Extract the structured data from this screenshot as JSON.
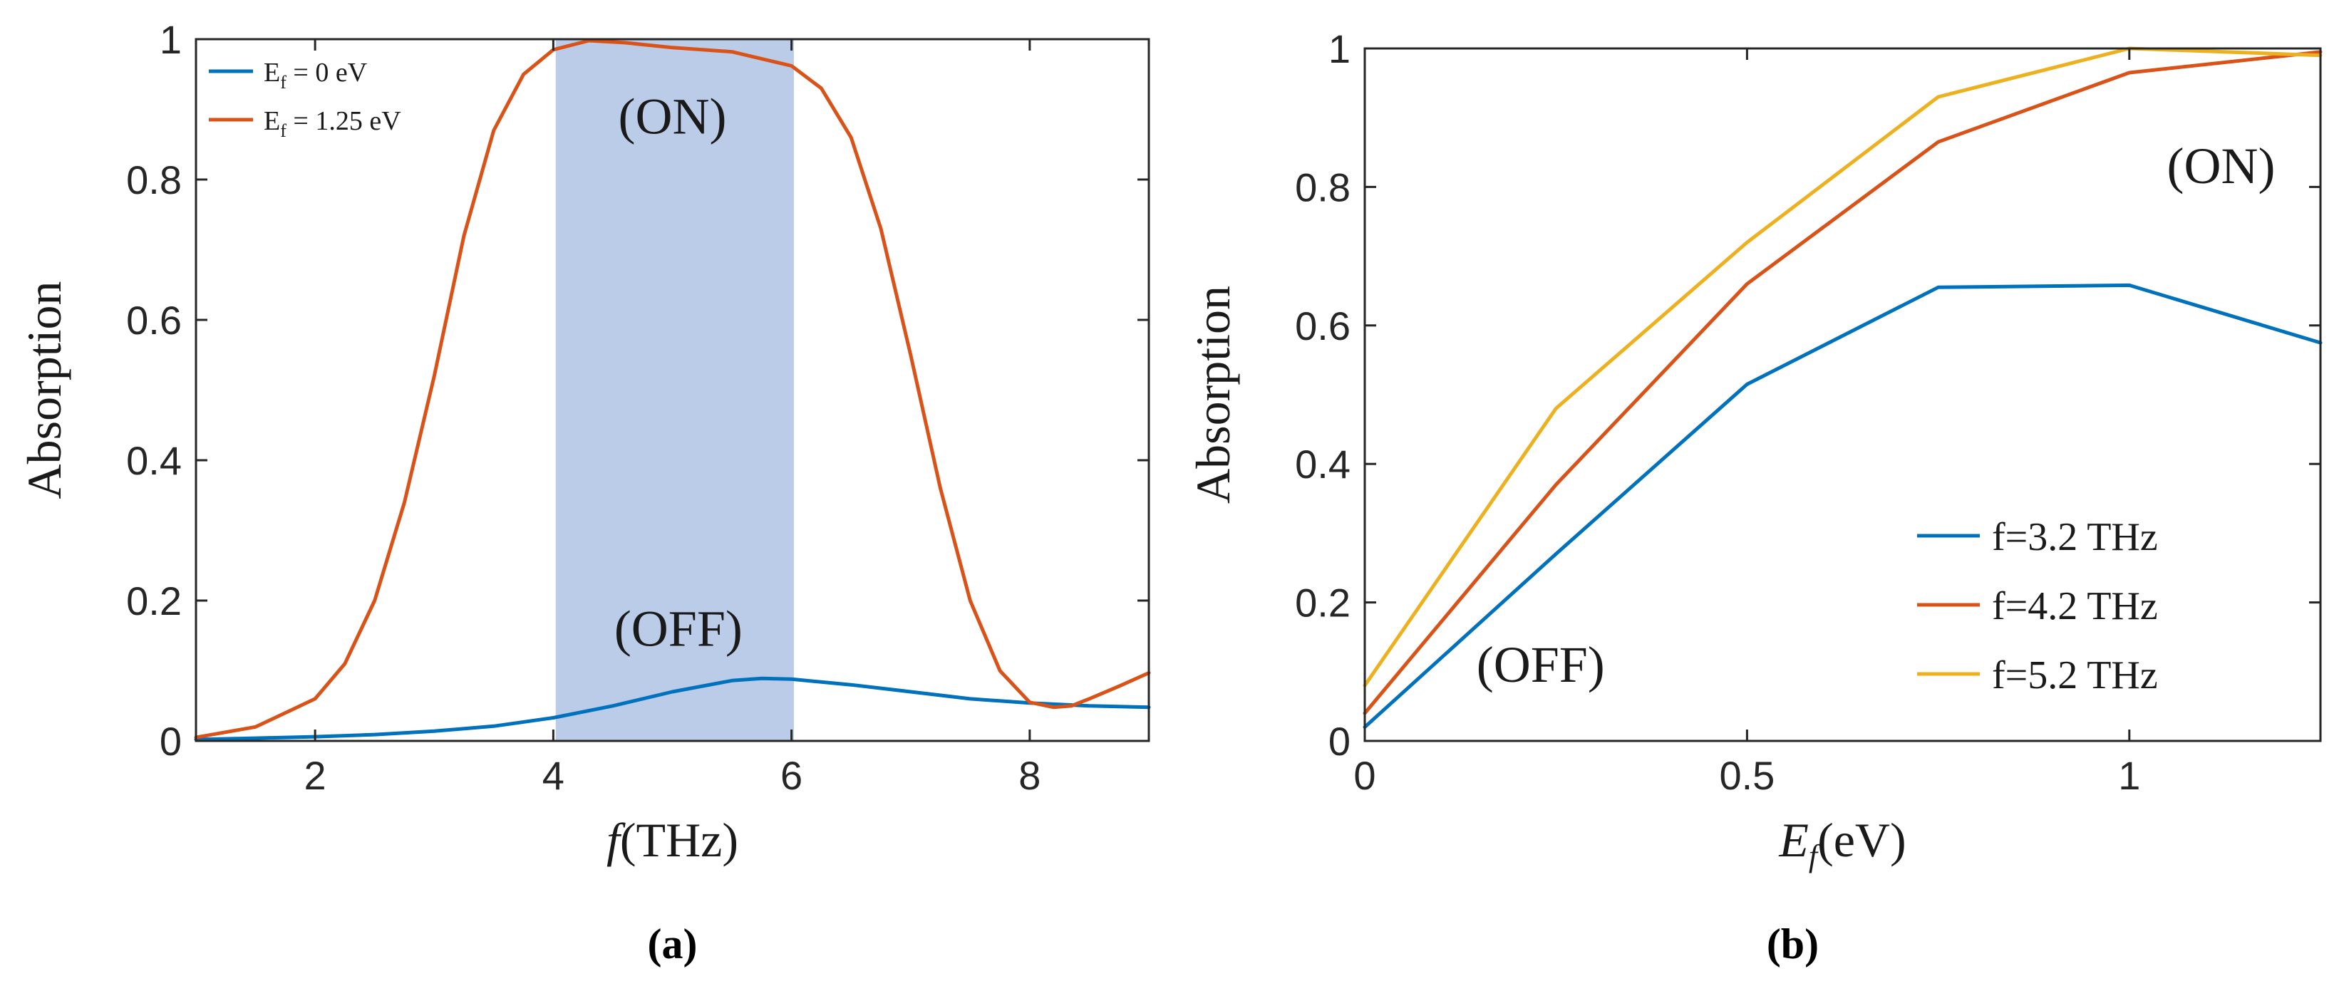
{
  "colors": {
    "blue": "#0072BD",
    "orange": "#D95319",
    "yellow": "#EDB120",
    "band": "#B4C7E7"
  },
  "chart_data": [
    {
      "type": "line",
      "caption": "(a)",
      "xlabel_italic": "f",
      "xlabel_rest": "(THz)",
      "ylabel": "Absorption",
      "xlim": [
        1,
        9
      ],
      "ylim": [
        0,
        1
      ],
      "xticks": [
        2,
        4,
        6,
        8
      ],
      "xtick_labels": [
        "2",
        "4",
        "6",
        "8"
      ],
      "yticks": [
        0,
        0.2,
        0.4,
        0.6,
        0.8,
        1
      ],
      "ytick_labels": [
        "0",
        "0.2",
        "0.4",
        "0.6",
        "0.8",
        "1"
      ],
      "highlight_band": [
        4.02,
        6.02
      ],
      "annotations": [
        {
          "text": "(ON)",
          "x": 5.0,
          "y": 0.89
        },
        {
          "text": "(OFF)",
          "x": 5.05,
          "y": 0.16
        }
      ],
      "legend_position": "top-left",
      "series": [
        {
          "name": "E_f = 0 eV",
          "legend_main": "E",
          "legend_sub": "f",
          "legend_rest": " = 0 eV",
          "color": "#0072BD",
          "x": [
            1.0,
            1.5,
            2.0,
            2.5,
            3.0,
            3.5,
            4.0,
            4.5,
            5.0,
            5.5,
            5.75,
            6.0,
            6.5,
            7.0,
            7.5,
            8.0,
            8.5,
            9.0
          ],
          "y": [
            0.002,
            0.004,
            0.006,
            0.009,
            0.014,
            0.021,
            0.033,
            0.05,
            0.07,
            0.086,
            0.089,
            0.088,
            0.08,
            0.07,
            0.06,
            0.054,
            0.05,
            0.048
          ]
        },
        {
          "name": "E_f = 1.25 eV",
          "legend_main": "E",
          "legend_sub": "f",
          "legend_rest": " = 1.25 eV",
          "color": "#D95319",
          "x": [
            1.0,
            1.5,
            2.0,
            2.25,
            2.5,
            2.75,
            3.0,
            3.25,
            3.5,
            3.75,
            4.0,
            4.3,
            4.6,
            5.0,
            5.5,
            6.0,
            6.25,
            6.5,
            6.75,
            7.0,
            7.25,
            7.5,
            7.75,
            8.0,
            8.2,
            8.35,
            8.5,
            8.75,
            9.0
          ],
          "y": [
            0.005,
            0.02,
            0.06,
            0.11,
            0.2,
            0.34,
            0.52,
            0.72,
            0.87,
            0.95,
            0.985,
            0.998,
            0.995,
            0.988,
            0.982,
            0.962,
            0.93,
            0.86,
            0.73,
            0.55,
            0.36,
            0.2,
            0.1,
            0.055,
            0.048,
            0.05,
            0.06,
            0.078,
            0.097
          ]
        }
      ]
    },
    {
      "type": "line",
      "caption": "(b)",
      "xlabel_italic": "E",
      "xlabel_sub": "f",
      "xlabel_rest": "(eV)",
      "ylabel": "Absorption",
      "xlim": [
        0,
        1.25
      ],
      "ylim": [
        0,
        1
      ],
      "xticks": [
        0,
        0.5,
        1
      ],
      "xtick_labels": [
        "0",
        "0.5",
        "1"
      ],
      "yticks": [
        0,
        0.2,
        0.4,
        0.6,
        0.8,
        1
      ],
      "ytick_labels": [
        "0",
        "0.2",
        "0.4",
        "0.6",
        "0.8",
        "1"
      ],
      "annotations": [
        {
          "text": "(ON)",
          "x": 1.12,
          "y": 0.83
        },
        {
          "text": "(OFF)",
          "x": 0.23,
          "y": 0.11
        }
      ],
      "legend_position": "bottom-right",
      "series": [
        {
          "name": "f=3.2 THz",
          "color": "#0072BD",
          "x": [
            0,
            0.25,
            0.5,
            0.75,
            1.0,
            1.25
          ],
          "y": [
            0.02,
            0.27,
            0.515,
            0.655,
            0.658,
            0.575
          ]
        },
        {
          "name": "f=4.2 THz",
          "color": "#D95319",
          "x": [
            0,
            0.25,
            0.5,
            0.75,
            1.0,
            1.25
          ],
          "y": [
            0.04,
            0.37,
            0.66,
            0.865,
            0.965,
            0.995
          ]
        },
        {
          "name": "f=5.2 THz",
          "color": "#EDB120",
          "x": [
            0,
            0.25,
            0.5,
            0.75,
            1.0,
            1.25
          ],
          "y": [
            0.08,
            0.48,
            0.72,
            0.93,
            1.0,
            0.99
          ]
        }
      ]
    }
  ]
}
